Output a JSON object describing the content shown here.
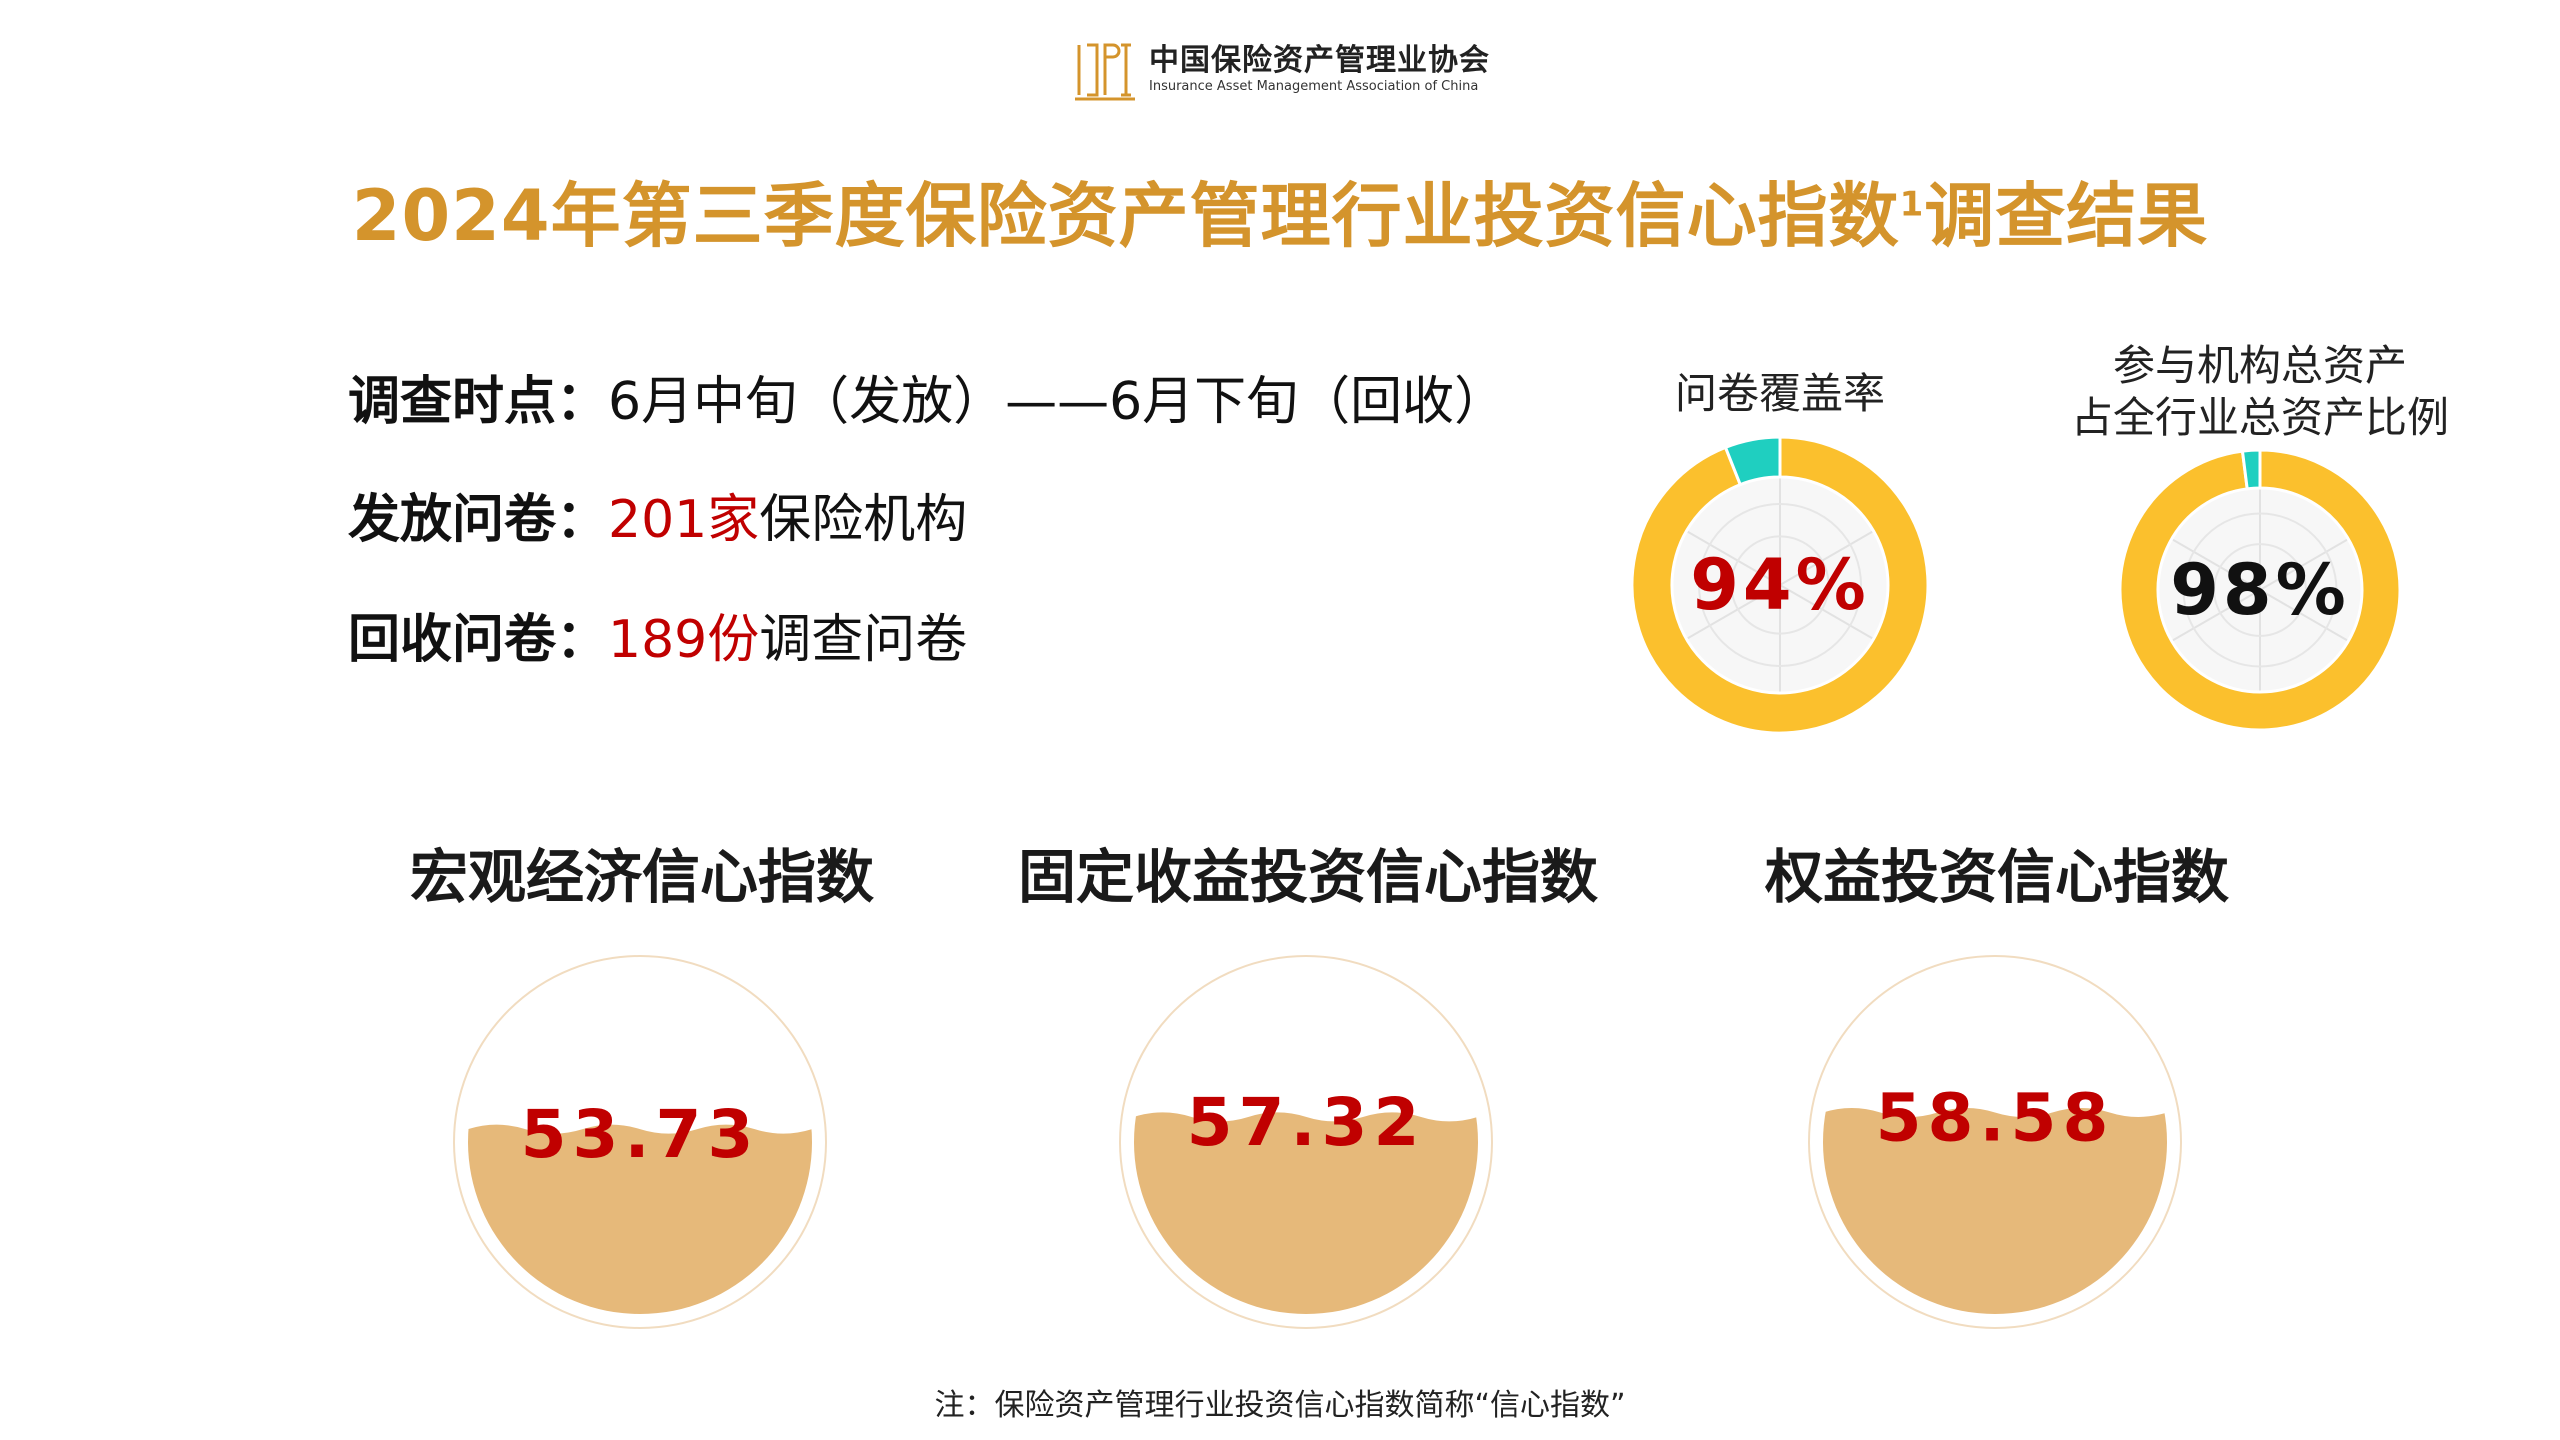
{
  "header": {
    "logo_cn": "中国保险资产管理业协会",
    "logo_en": "Insurance Asset Management Association of China",
    "title": "2024年第三季度保险资产管理行业投资信心指数",
    "title_sup": "1",
    "title_suffix": "调查结果"
  },
  "survey": {
    "time_label": "调查时点：",
    "time_value": "6月中旬（发放）——6月下旬（回收）",
    "issued_label": "发放问卷：",
    "issued_value": "201家",
    "issued_suffix": "保险机构",
    "returned_label": "回收问卷：",
    "returned_value": "189份",
    "returned_suffix": "调查问卷"
  },
  "colors": {
    "gold": "#FBC02D",
    "teal": "#1FCFC0",
    "red": "#C00000",
    "title": "#D4942C",
    "fill": "#E6B97A"
  },
  "chart_data": [
    {
      "type": "pie",
      "title": "问卷覆盖率",
      "values": [
        94,
        6
      ],
      "center_label": "94%",
      "center_color": "red"
    },
    {
      "type": "pie",
      "title_line1": "参与机构总资产",
      "title_line2": "占全行业总资产比例",
      "values": [
        98,
        2
      ],
      "center_label": "98%",
      "center_color": "black"
    },
    {
      "type": "bar",
      "categories": [
        "宏观经济信心指数",
        "固定收益投资信心指数",
        "权益投资信心指数"
      ],
      "values": [
        53.73,
        57.32,
        58.58
      ],
      "labels": [
        "53.73",
        "57.32",
        "58.58"
      ]
    }
  ],
  "footnote": "注：保险资产管理行业投资信心指数简称“信心指数”"
}
